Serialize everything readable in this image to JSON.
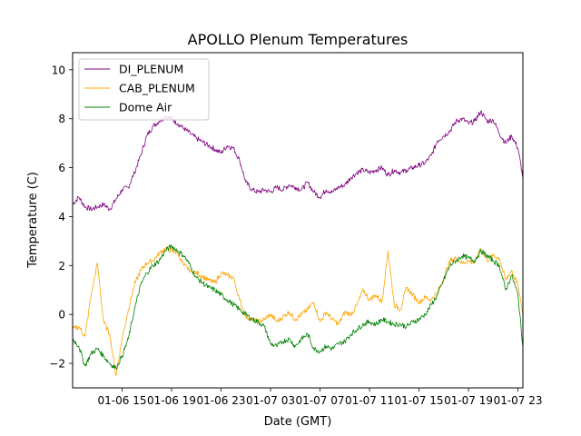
{
  "chart_data": {
    "type": "line",
    "title": "APOLLO Plenum Temperatures",
    "xlabel": "Date (GMT)",
    "ylabel": "Temperature (C)",
    "x_unit": "hours since 01-06 00:00 GMT",
    "xlim": [
      11.0,
      47.4
    ],
    "ylim": [
      -3.0,
      10.7
    ],
    "x_ticks": [
      {
        "value": 15,
        "label": "01-06 15"
      },
      {
        "value": 19,
        "label": "01-06 19"
      },
      {
        "value": 23,
        "label": "01-06 23"
      },
      {
        "value": 27,
        "label": "01-07 03"
      },
      {
        "value": 31,
        "label": "01-07 07"
      },
      {
        "value": 35,
        "label": "01-07 11"
      },
      {
        "value": 39,
        "label": "01-07 15"
      },
      {
        "value": 43,
        "label": "01-07 19"
      },
      {
        "value": 47,
        "label": "01-07 23"
      }
    ],
    "y_ticks": [
      {
        "value": -2,
        "label": "−2"
      },
      {
        "value": 0,
        "label": "0"
      },
      {
        "value": 2,
        "label": "2"
      },
      {
        "value": 4,
        "label": "4"
      },
      {
        "value": 6,
        "label": "6"
      },
      {
        "value": 8,
        "label": "8"
      },
      {
        "value": 10,
        "label": "10"
      }
    ],
    "legend_position": "top-left",
    "series": [
      {
        "name": "DI_PLENUM",
        "color": "#800080",
        "x": [
          11.0,
          11.5,
          12.0,
          12.5,
          13.0,
          13.5,
          14.0,
          14.5,
          15.0,
          15.5,
          16.0,
          16.5,
          17.0,
          17.5,
          18.0,
          18.5,
          19.0,
          19.5,
          20.0,
          20.5,
          21.0,
          21.5,
          22.0,
          22.5,
          23.0,
          23.5,
          24.0,
          24.5,
          25.0,
          25.5,
          26.0,
          26.5,
          27.0,
          27.5,
          28.0,
          28.5,
          29.0,
          29.5,
          30.0,
          30.5,
          31.0,
          31.5,
          32.0,
          32.5,
          33.0,
          33.5,
          34.0,
          34.5,
          35.0,
          35.5,
          36.0,
          36.5,
          37.0,
          37.5,
          38.0,
          38.5,
          39.0,
          39.5,
          40.0,
          40.5,
          41.0,
          41.5,
          42.0,
          42.5,
          43.0,
          43.5,
          44.0,
          44.5,
          45.0,
          45.5,
          46.0,
          46.5,
          47.0,
          47.4
        ],
        "values": [
          4.5,
          4.8,
          4.4,
          4.3,
          4.4,
          4.5,
          4.3,
          4.7,
          5.1,
          5.2,
          5.8,
          6.5,
          7.3,
          7.7,
          7.9,
          8.1,
          8.0,
          7.8,
          7.6,
          7.4,
          7.2,
          7.05,
          6.9,
          6.75,
          6.6,
          6.9,
          6.8,
          6.3,
          5.4,
          5.1,
          5.0,
          5.1,
          5.0,
          5.2,
          5.1,
          5.3,
          5.2,
          5.1,
          5.4,
          5.0,
          4.8,
          5.1,
          5.0,
          5.2,
          5.3,
          5.6,
          5.8,
          5.9,
          5.8,
          5.9,
          6.0,
          5.7,
          5.9,
          5.8,
          5.9,
          6.0,
          6.1,
          6.2,
          6.5,
          7.1,
          7.3,
          7.5,
          7.9,
          8.0,
          7.8,
          7.9,
          8.3,
          7.9,
          7.95,
          7.4,
          7.0,
          7.3,
          6.8,
          5.6
        ]
      },
      {
        "name": "CAB_PLENUM",
        "color": "#FFA500",
        "x": [
          11.0,
          11.5,
          12.0,
          12.5,
          13.0,
          13.5,
          14.0,
          14.5,
          15.0,
          15.5,
          16.0,
          16.5,
          17.0,
          17.5,
          18.0,
          18.5,
          19.0,
          19.5,
          20.0,
          20.5,
          21.0,
          21.5,
          22.0,
          22.5,
          23.0,
          23.5,
          24.0,
          24.5,
          25.0,
          25.5,
          26.0,
          26.5,
          27.0,
          27.5,
          28.0,
          28.5,
          29.0,
          29.5,
          30.0,
          30.5,
          31.0,
          31.5,
          32.0,
          32.5,
          33.0,
          33.5,
          34.0,
          34.5,
          35.0,
          35.5,
          36.0,
          36.5,
          37.0,
          37.5,
          38.0,
          38.5,
          39.0,
          39.5,
          40.0,
          40.5,
          41.0,
          41.5,
          42.0,
          42.5,
          43.0,
          43.5,
          44.0,
          44.5,
          45.0,
          45.5,
          46.0,
          46.5,
          47.0,
          47.4
        ],
        "values": [
          -0.6,
          -0.5,
          -0.9,
          0.8,
          2.1,
          -0.3,
          -0.8,
          -2.5,
          -1.0,
          0.2,
          1.2,
          1.8,
          2.1,
          2.2,
          2.5,
          2.7,
          2.6,
          2.5,
          2.0,
          1.8,
          1.7,
          1.55,
          1.4,
          1.3,
          1.7,
          1.6,
          1.5,
          0.6,
          -0.1,
          -0.2,
          -0.3,
          -0.2,
          0.0,
          -0.3,
          -0.1,
          0.1,
          -0.2,
          0.0,
          0.2,
          0.5,
          -0.3,
          0.1,
          -0.2,
          -0.4,
          0.1,
          0.0,
          0.4,
          1.0,
          0.6,
          0.8,
          0.5,
          2.6,
          0.4,
          0.2,
          1.1,
          0.8,
          0.5,
          0.7,
          0.6,
          0.9,
          1.5,
          2.2,
          2.3,
          2.1,
          2.2,
          2.1,
          2.7,
          2.2,
          2.4,
          2.3,
          1.4,
          1.8,
          1.2,
          0.0
        ]
      },
      {
        "name": "Dome Air",
        "color": "#008000",
        "x": [
          11.0,
          11.5,
          12.0,
          12.5,
          13.0,
          13.5,
          14.0,
          14.5,
          15.0,
          15.5,
          16.0,
          16.5,
          17.0,
          17.5,
          18.0,
          18.5,
          19.0,
          19.5,
          20.0,
          20.5,
          21.0,
          21.5,
          22.0,
          22.5,
          23.0,
          23.5,
          24.0,
          24.5,
          25.0,
          25.5,
          26.0,
          26.5,
          27.0,
          27.5,
          28.0,
          28.5,
          29.0,
          29.5,
          30.0,
          30.5,
          31.0,
          31.5,
          32.0,
          32.5,
          33.0,
          33.5,
          34.0,
          34.5,
          35.0,
          35.5,
          36.0,
          36.5,
          37.0,
          37.5,
          38.0,
          38.5,
          39.0,
          39.5,
          40.0,
          40.5,
          41.0,
          41.5,
          42.0,
          42.5,
          43.0,
          43.5,
          44.0,
          44.5,
          45.0,
          45.5,
          46.0,
          46.5,
          47.0,
          47.4
        ],
        "values": [
          -1.0,
          -1.3,
          -2.1,
          -1.6,
          -1.4,
          -1.7,
          -2.0,
          -2.2,
          -1.7,
          -1.0,
          0.2,
          1.2,
          1.7,
          2.0,
          2.2,
          2.6,
          2.8,
          2.6,
          2.4,
          2.0,
          1.5,
          1.3,
          1.1,
          1.0,
          0.8,
          0.6,
          0.4,
          0.2,
          0.0,
          -0.2,
          -0.3,
          -0.5,
          -1.2,
          -1.3,
          -1.1,
          -1.0,
          -1.3,
          -1.0,
          -0.8,
          -1.4,
          -1.5,
          -1.3,
          -1.4,
          -1.2,
          -1.1,
          -0.8,
          -0.6,
          -0.4,
          -0.3,
          -0.4,
          -0.2,
          -0.3,
          -0.4,
          -0.4,
          -0.5,
          -0.3,
          -0.2,
          0.0,
          0.4,
          0.8,
          1.4,
          2.0,
          2.2,
          2.4,
          2.3,
          2.2,
          2.6,
          2.4,
          2.2,
          2.0,
          1.0,
          1.6,
          0.8,
          -1.3
        ]
      }
    ]
  }
}
